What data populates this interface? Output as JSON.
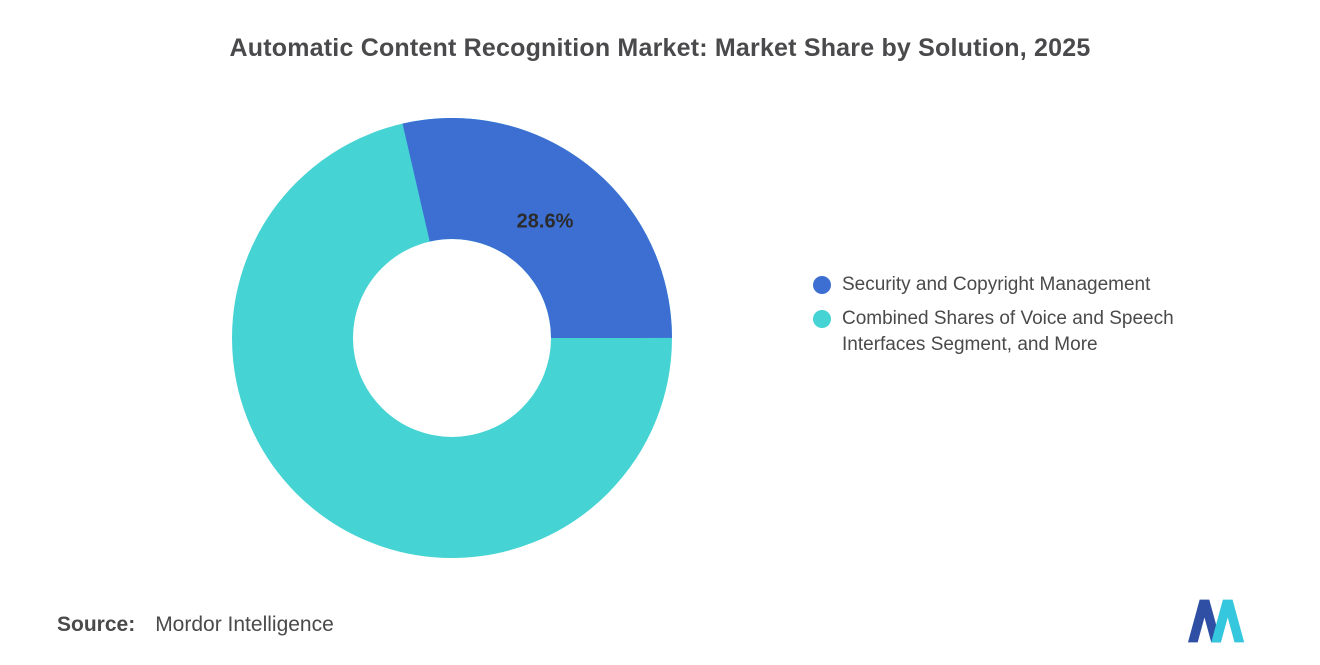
{
  "title": "Automatic Content Recognition Market: Market Share by Solution, 2025",
  "chart_data": {
    "type": "pie",
    "subtype": "donut",
    "title": "Automatic Content Recognition Market: Market Share by Solution, 2025",
    "labels": [
      "Security and Copyright Management",
      "Combined Shares of Voice and Speech Interfaces Segment, and More"
    ],
    "values": [
      28.6,
      71.4
    ],
    "colors": [
      "#3d6fd3",
      "#45d3d3"
    ],
    "data_labels": [
      "28.6%",
      ""
    ],
    "start_angle_deg": -13,
    "inner_radius_ratio": 0.45,
    "legend_position": "right",
    "grid": false
  },
  "legend": {
    "items": [
      {
        "label": "Security and Copyright Management",
        "color": "#3d6fd3"
      },
      {
        "label": "Combined Shares of Voice and Speech Interfaces Segment, and More",
        "color": "#45d3d3"
      }
    ]
  },
  "source": {
    "label": "Source:",
    "value": "Mordor Intelligence"
  },
  "logo": {
    "name": "mordor-intelligence-logo",
    "colors": {
      "navy": "#2e4fa3",
      "teal": "#35c7dd"
    }
  }
}
